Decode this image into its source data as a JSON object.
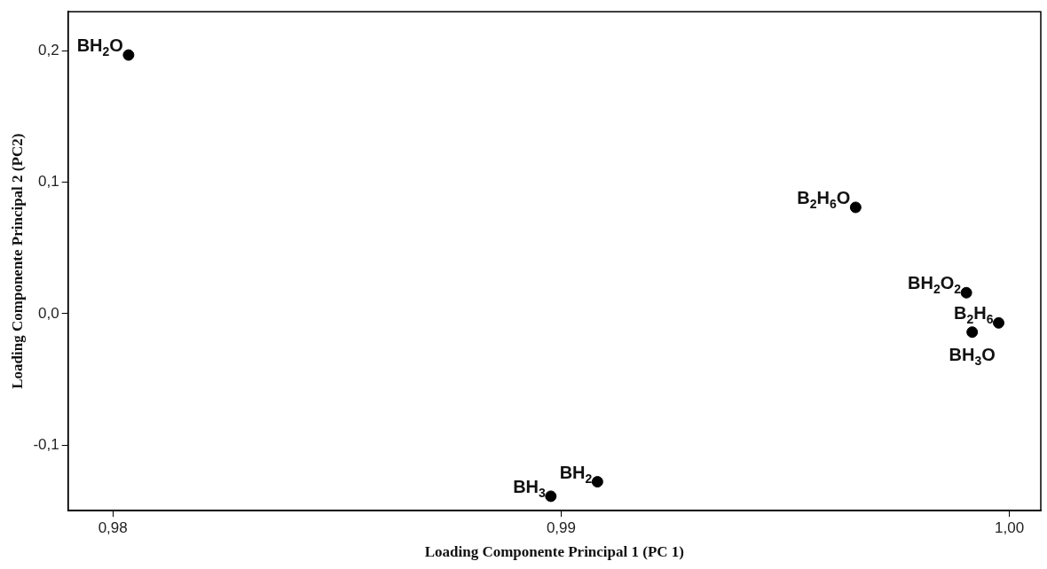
{
  "chart_data": {
    "type": "scatter",
    "xlabel": "Loading Componente Principal 1 (PC 1)",
    "ylabel": "Loading Componente Principal 2 (PC2)",
    "x": [
      0.98035,
      0.99657,
      0.99904,
      0.99976,
      0.99917,
      0.99081,
      0.98977
    ],
    "values": [
      0.197,
      0.081,
      0.016,
      -0.007,
      -0.014,
      -0.128,
      -0.139
    ],
    "color": "#000000",
    "marker": "circle",
    "grid": false,
    "xlim": [
      0.979,
      1.0007
    ],
    "xticks": [
      {
        "value": 0.98,
        "label": "0,98"
      },
      {
        "value": 0.99,
        "label": "0,99"
      },
      {
        "value": 1.0,
        "label": "1,00"
      }
    ],
    "ylim": [
      -0.15,
      0.23
    ],
    "yticks": [
      {
        "value": -0.1,
        "label": "-0,1"
      },
      {
        "value": 0,
        "label": "0,0"
      },
      {
        "value": 0.1,
        "label": "0,1"
      },
      {
        "value": 0.2,
        "label": "0,2"
      }
    ],
    "annotations": [
      {
        "text": "BH$_{2}$O",
        "x": 0.98035,
        "y": 0.197
      },
      {
        "text": "B$_{2}$H$_{6}$O",
        "x": 0.99657,
        "y": 0.081
      },
      {
        "text": "BH$_{2}$O$_{2}$",
        "x": 0.99904,
        "y": 0.016
      },
      {
        "text": "B$_{2}$H$_{6}$",
        "x": 0.99976,
        "y": -0.007
      },
      {
        "text": "BH$_{3}$O",
        "x": 0.99917,
        "y": -0.014
      },
      {
        "text": "BH$_{2}$",
        "x": 0.99081,
        "y": -0.128
      },
      {
        "text": "BH$_{3}$",
        "x": 0.98977,
        "y": -0.139
      }
    ]
  }
}
